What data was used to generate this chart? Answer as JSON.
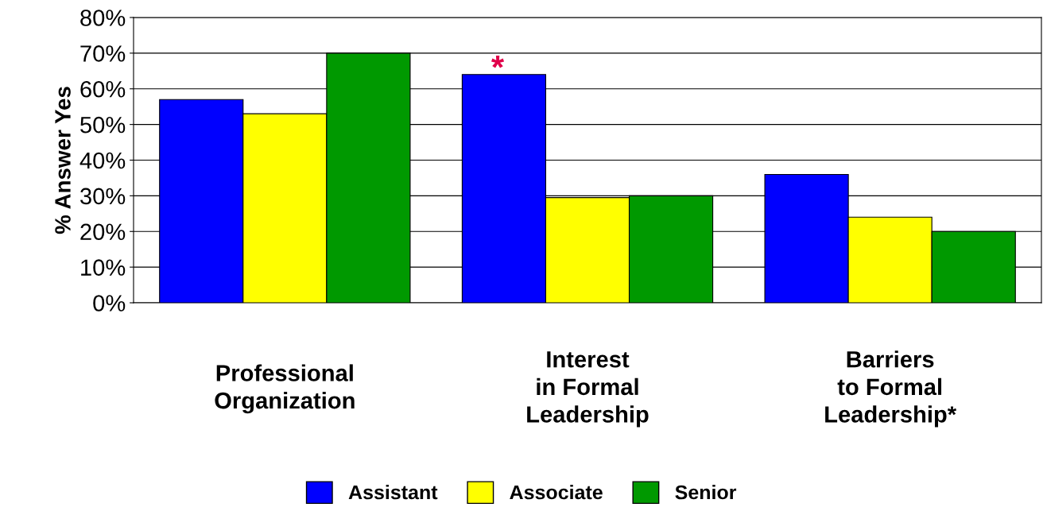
{
  "chart_data": {
    "type": "bar",
    "ylabel": "% Answer Yes",
    "categories": [
      "Professional\nOrganization",
      "Interest\nin Formal\nLeadership",
      "Barriers\nto Formal\nLeadership*"
    ],
    "series": [
      {
        "name": "Assistant",
        "color": "#0000ff",
        "values": [
          57,
          64,
          36
        ]
      },
      {
        "name": "Associate",
        "color": "#ffff00",
        "values": [
          53,
          29.5,
          24
        ]
      },
      {
        "name": "Senior",
        "color": "#009900",
        "values": [
          70,
          30,
          20
        ]
      }
    ],
    "ylim": [
      0,
      80
    ],
    "yticks": [
      {
        "value": 0,
        "label": "0%"
      },
      {
        "value": 10,
        "label": "10%"
      },
      {
        "value": 20,
        "label": "20%"
      },
      {
        "value": 30,
        "label": "30%"
      },
      {
        "value": 40,
        "label": "40%"
      },
      {
        "value": 50,
        "label": "50%"
      },
      {
        "value": 60,
        "label": "60%"
      },
      {
        "value": 70,
        "label": "70%"
      },
      {
        "value": 80,
        "label": "80%"
      }
    ],
    "grid": "y",
    "legend": "bottom",
    "annotations": [
      "*"
    ]
  }
}
